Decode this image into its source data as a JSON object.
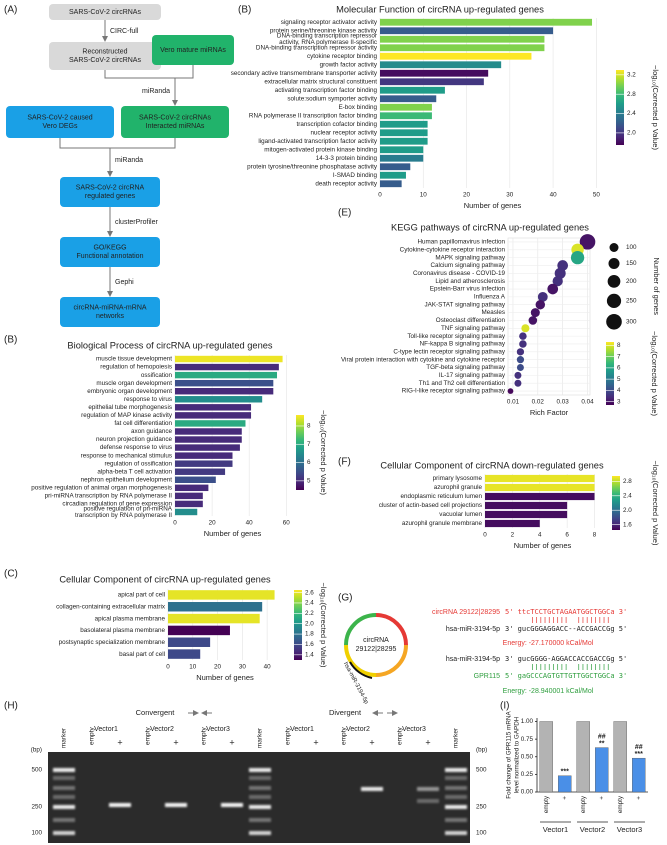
{
  "panels": {
    "a": "(A)",
    "b1": "(B)",
    "b2": "(B)",
    "c": "(C)",
    "e": "(E)",
    "f": "(F)",
    "g": "(G)",
    "h": "(H)",
    "i": "(I)"
  },
  "flowchart": {
    "nodes": [
      {
        "lines": [
          "SARS-CoV-2 circRNAs"
        ]
      },
      {
        "lines": [
          "Reconstructed",
          "SARS-CoV-2 circRNAs"
        ]
      },
      {
        "lines": [
          "Vero mature miRNAs"
        ]
      },
      {
        "lines": [
          "SARS-CoV-2  caused",
          "Vero DEGs"
        ]
      },
      {
        "lines": [
          "SARS-CoV-2 circRNAs",
          "Interacted miRNAs"
        ]
      },
      {
        "lines": [
          "SARS-CoV-2 circRNA",
          "regulated genes"
        ]
      },
      {
        "lines": [
          "GO/KEGG",
          "Functional annotation"
        ]
      },
      {
        "lines": [
          "circRNA-miRNA-mRNA",
          "networks"
        ]
      }
    ],
    "edges": [
      "CIRC-full",
      "miRanda",
      "miRanda",
      "clusterProfiler",
      "Gephi"
    ]
  },
  "chart_data": [
    {
      "type": "hbar",
      "title": "Molecular Function of circRNA up-regulated genes",
      "xlabel": "Number of genes",
      "categories": [
        "signaling receptor activator activity",
        "protein serine/threonine kinase activity",
        [
          "DNA-binding transcription repressor",
          "activity, RNA polymerase II-specific"
        ],
        "DNA-binding transcription repressor activity",
        "cytokine receptor binding",
        "growth factor activity",
        "secondary active transmembrane transporter activity",
        "extracellular matrix structural constituent",
        "activating transcription factor binding",
        "solute:sodium symporter activity",
        "E-box binding",
        "RNA polymerase II transcription factor binding",
        "transcription cofactor binding",
        "nuclear receptor activity",
        "ligand-activated transcription factor activity",
        "mitogen-activated protein kinase binding",
        "14-3-3 protein binding",
        "protein tyrosine/threonine phosphatase activity",
        "I-SMAD binding",
        "death receptor activity"
      ],
      "values": [
        49,
        40,
        38,
        38,
        35,
        28,
        25,
        24,
        15,
        13,
        12,
        12,
        11,
        11,
        11,
        10,
        10,
        7,
        6,
        5
      ],
      "color_values": [
        3.0,
        2.2,
        3.0,
        3.0,
        3.3,
        2.5,
        1.8,
        2.0,
        2.6,
        2.2,
        3.0,
        2.8,
        2.6,
        2.6,
        2.6,
        2.6,
        2.4,
        2.2,
        2.6,
        2.2
      ],
      "xlim": [
        0,
        52
      ],
      "xticks": [
        0,
        10,
        20,
        30,
        40,
        50
      ],
      "grid": true,
      "colorbar": {
        "title": "−log₁₀(Corrected p Value)",
        "colormap": "viridis",
        "lim": [
          1.75,
          3.3
        ],
        "ticks": [
          {
            "value": 2,
            "label": "2.0"
          },
          2.4,
          2.8,
          3.2
        ]
      }
    },
    {
      "type": "hbar",
      "title": "Biological Process of circRNA up-regulated genes",
      "xlabel": "Number of genes",
      "categories": [
        "muscle tissue development",
        "regulation of hemopoiesis",
        "ossification",
        "muscle organ development",
        "embryonic organ development",
        "response to virus",
        "epithelial tube morphogenesis",
        "regulation of MAP kinase activity",
        "fat cell differentiation",
        "axon guidance",
        "neuron projection guidance",
        "defense response to virus",
        "response to mechanical stimulus",
        "regulation of ossification",
        "alpha-beta T cell activation",
        "nephron epithelium development",
        "positive regulation of animal organ morphogenesis",
        "pri-miRNA transcription by RNA polymerase II",
        "circadian regulation of gene expression",
        [
          "positive regulation of pri-miRNA",
          "transcription by RNA polymerase II"
        ]
      ],
      "values": [
        58,
        56,
        55,
        53,
        53,
        47,
        41,
        41,
        38,
        36,
        36,
        35,
        31,
        31,
        27,
        22,
        18,
        15,
        15,
        12
      ],
      "color_values": [
        8.5,
        5.0,
        7.0,
        5.5,
        5.0,
        6.5,
        5.0,
        5.0,
        7.0,
        5.0,
        5.0,
        5.0,
        5.0,
        5.2,
        5.2,
        5.5,
        5.0,
        5.0,
        5.0,
        6.5
      ],
      "xlim": [
        0,
        62
      ],
      "xticks": [
        0,
        20,
        40,
        60
      ],
      "grid": true,
      "colorbar": {
        "title": "−log₁₀(Corrected p Value)",
        "colormap": "viridis",
        "lim": [
          4.5,
          8.6
        ],
        "ticks": [
          5,
          6,
          7,
          8
        ]
      }
    },
    {
      "type": "hbar",
      "title": "Cellular Component of circRNA up-regulated genes",
      "xlabel": "Number of genes",
      "categories": [
        "apical part of cell",
        "collagen-containing extracellular matrix",
        "apical plasma membrane",
        "basolateral plasma membrane",
        "postsynaptic specialization membrane",
        "basal part of cell"
      ],
      "values": [
        43,
        38,
        37,
        25,
        17,
        13
      ],
      "color_values": [
        2.6,
        1.8,
        2.6,
        1.3,
        1.6,
        1.6
      ],
      "xlim": [
        0,
        46
      ],
      "xticks": [
        0,
        10,
        20,
        30,
        40
      ],
      "grid": true,
      "colorbar": {
        "title": "−log₁₀(Corrected p Value)",
        "colormap": "viridis",
        "lim": [
          1.3,
          2.65
        ],
        "ticks": [
          1.4,
          1.6,
          1.8,
          {
            "value": 2,
            "label": "2.0"
          },
          2.2,
          2.4,
          2.6
        ]
      }
    },
    {
      "type": "dot",
      "title": "KEGG pathways of circRNA up-regulated genes",
      "xlabel": "Rich Factor",
      "categories": [
        "Human papillomavirus infection",
        "Cytokine-cytokine receptor interaction",
        "MAPK signaling pathway",
        "Calcium signaling pathway",
        "Coronavirus disease - COVID-19",
        "Lipid and atherosclerosis",
        "Epstein-Barr virus infection",
        "Influenza A",
        "JAK-STAT signaling pathway",
        "Measles",
        "Osteoclast differentiation",
        "TNF signaling pathway",
        "Toll-like receptor signaling pathway",
        "NF-kappa B signaling pathway",
        "C-type lectin receptor signaling pathway",
        "Viral protein interaction with cytokine and cytokine receptor",
        "TGF-beta signaling pathway",
        "IL-17 signaling pathway",
        "Th1 and Th2 cell differentiation",
        "RIG-I-like receptor signaling pathway"
      ],
      "x": [
        0.04,
        0.036,
        0.036,
        0.03,
        0.029,
        0.028,
        0.026,
        0.022,
        0.021,
        0.019,
        0.018,
        0.015,
        0.014,
        0.014,
        0.013,
        0.013,
        0.013,
        0.012,
        0.012,
        0.009
      ],
      "sizes": [
        300,
        190,
        220,
        140,
        150,
        130,
        140,
        120,
        110,
        100,
        90,
        80,
        70,
        70,
        65,
        65,
        60,
        60,
        60,
        40
      ],
      "color_values": [
        3.0,
        8.0,
        6.0,
        3.5,
        3.5,
        3.5,
        3.0,
        3.5,
        3.0,
        3.0,
        3.0,
        8.0,
        3.5,
        3.5,
        3.5,
        4.0,
        4.0,
        3.5,
        3.5,
        2.8
      ],
      "xlim": [
        0.008,
        0.041
      ],
      "xticks": [
        0.01,
        0.02,
        0.03,
        0.04
      ],
      "grid": true,
      "size_legend": {
        "title": "Number of genes",
        "ticks": [
          100,
          150,
          200,
          250,
          300
        ]
      },
      "colorbar": {
        "title": "−log₁₀(Corrected p Value)",
        "colormap": "viridis",
        "lim": [
          2.7,
          8.3
        ],
        "ticks": [
          3,
          4,
          5,
          6,
          7,
          8
        ]
      }
    },
    {
      "type": "hbar",
      "title": "Cellular Component of circRNA down-regulated genes",
      "xlabel": "Number of genes",
      "categories": [
        "primary lysosome",
        "azurophil granule",
        "endoplasmic reticulum lumen",
        "cluster of actin-based cell projections",
        "vacuolar lumen",
        "azurophil granule membrane"
      ],
      "values": [
        8,
        8,
        8,
        6,
        6,
        4
      ],
      "color_values": [
        2.9,
        2.9,
        1.5,
        1.5,
        1.5,
        1.5
      ],
      "xlim": [
        0,
        8.4
      ],
      "xticks": [
        0,
        2,
        4,
        6,
        8
      ],
      "grid": true,
      "colorbar": {
        "title": "−log₁₀(Corrected p Value)",
        "colormap": "viridis",
        "lim": [
          1.45,
          2.95
        ],
        "ticks": [
          1.6,
          {
            "value": 2,
            "label": "2.0"
          },
          2.4,
          2.8
        ]
      }
    },
    {
      "type": "vbar",
      "ylabel": [
        "Fold change of GPR115 mRNA",
        "level normalized to GAPDH"
      ],
      "categories": [
        "empty",
        "+",
        "empty",
        "+",
        "empty",
        "+"
      ],
      "groups": [
        "Vector1",
        "Vector2",
        "Vector3"
      ],
      "values": [
        1.0,
        0.23,
        1.0,
        0.63,
        1.0,
        0.48
      ],
      "colors": [
        "#b3b3b3",
        "#4a8fe7",
        "#b3b3b3",
        "#4a8fe7",
        "#b3b3b3",
        "#4a8fe7"
      ],
      "annotations": [
        null,
        [
          "***"
        ],
        null,
        [
          "##",
          "**"
        ],
        null,
        [
          "##",
          "***"
        ]
      ],
      "ylim": [
        0,
        1.05
      ],
      "yticks": [
        {
          "value": 0,
          "label": "0.00"
        },
        0.25,
        {
          "value": 0.5,
          "label": "0.50"
        },
        0.75,
        {
          "value": 1,
          "label": "1.00"
        }
      ]
    }
  ],
  "circ": {
    "name_lines": [
      "circRNA",
      "29122|28295"
    ],
    "arc_label": "hsa-miR-3194-5p",
    "pair1": {
      "top_name": "circRNA 29122|28295",
      "top_seq": "5' ttcTCCTGCTAGAATGGCTGGCa 3'",
      "bottom_name": "hsa-miR-3194-5p",
      "bottom_seq": "3' gucGGGAGGACC--ACCGACCGg 5'",
      "energy": "Energy: -27.170000 kCal/Mol"
    },
    "pair2": {
      "top_name": "hsa-miR-3194-5p",
      "top_seq": "3' gucGGGG-AGGACCACCGACCGg 5'",
      "bottom_name": "GPR115",
      "bottom_seq": "5' gaGCCCAGTGTTGTTGGCTGGCa 3'",
      "energy": "Energy: -28.940001 kCal/Mol"
    }
  },
  "gel": {
    "convergent": "Convergent",
    "divergent": "Divergent",
    "marker": "marker",
    "bp": "(bp)",
    "bp_sizes": [
      "500",
      "250",
      "100"
    ],
    "vectors": [
      "Vector1",
      "Vector2",
      "Vector3"
    ],
    "lane_labels": [
      "empty",
      "+"
    ]
  }
}
